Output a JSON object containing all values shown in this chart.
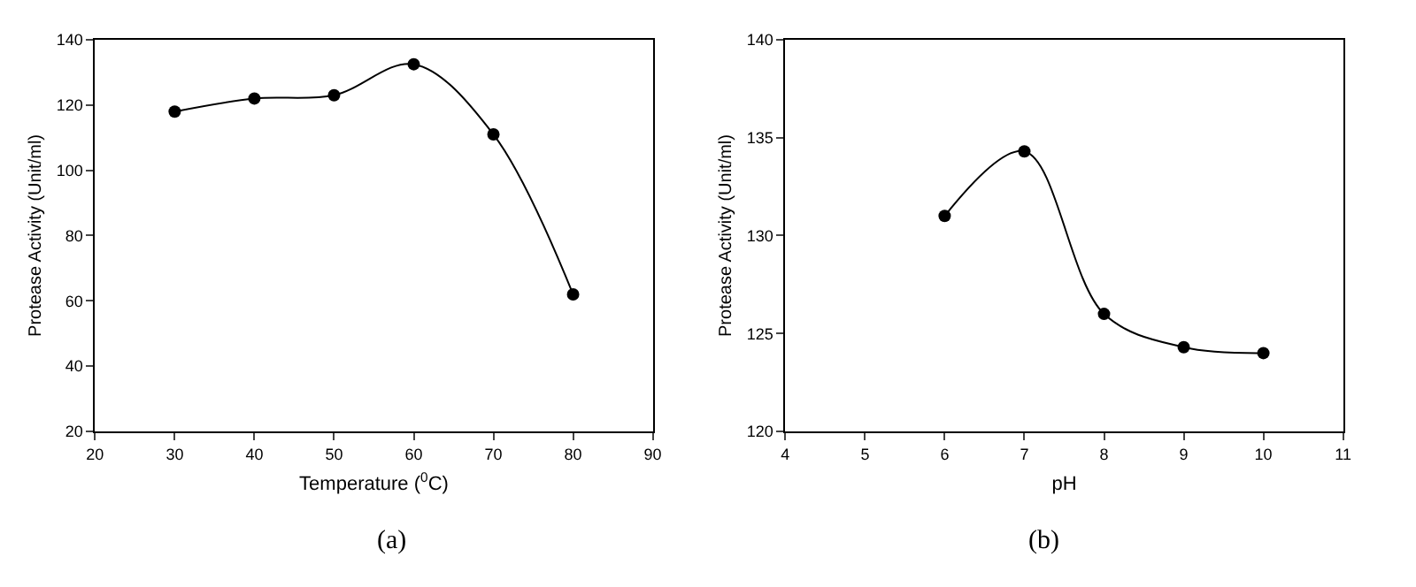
{
  "chart_data": [
    {
      "type": "line",
      "xlabel": "Temperature ($^{0}$C)",
      "ylabel": "Protease Activity (Unit/ml)",
      "annotations": [
        "(a)"
      ],
      "x": [
        30,
        40,
        50,
        60,
        70,
        80
      ],
      "series": [
        {
          "color": "#000000",
          "values": [
            118,
            122,
            123,
            132.5,
            111,
            62
          ]
        }
      ],
      "xlim": [
        20,
        90
      ],
      "xticks": [
        20,
        30,
        40,
        50,
        60,
        70,
        80,
        90
      ],
      "ylim": [
        20,
        140
      ],
      "yticks": [
        20,
        40,
        60,
        80,
        100,
        120,
        140
      ],
      "marker": "circle",
      "line_style": "solid"
    },
    {
      "type": "line",
      "xlabel": "pH",
      "ylabel": "Protease Activity (Unit/ml)",
      "annotations": [
        "(b)"
      ],
      "x": [
        6,
        7,
        8,
        9,
        10
      ],
      "series": [
        {
          "color": "#000000",
          "values": [
            131,
            134.3,
            126,
            124.3,
            124
          ]
        }
      ],
      "xlim": [
        4,
        11
      ],
      "xticks": [
        4,
        5,
        6,
        7,
        8,
        9,
        10,
        11
      ],
      "ylim": [
        120,
        140
      ],
      "yticks": [
        120,
        125,
        130,
        135,
        140
      ],
      "marker": "circle",
      "line_style": "solid"
    }
  ]
}
